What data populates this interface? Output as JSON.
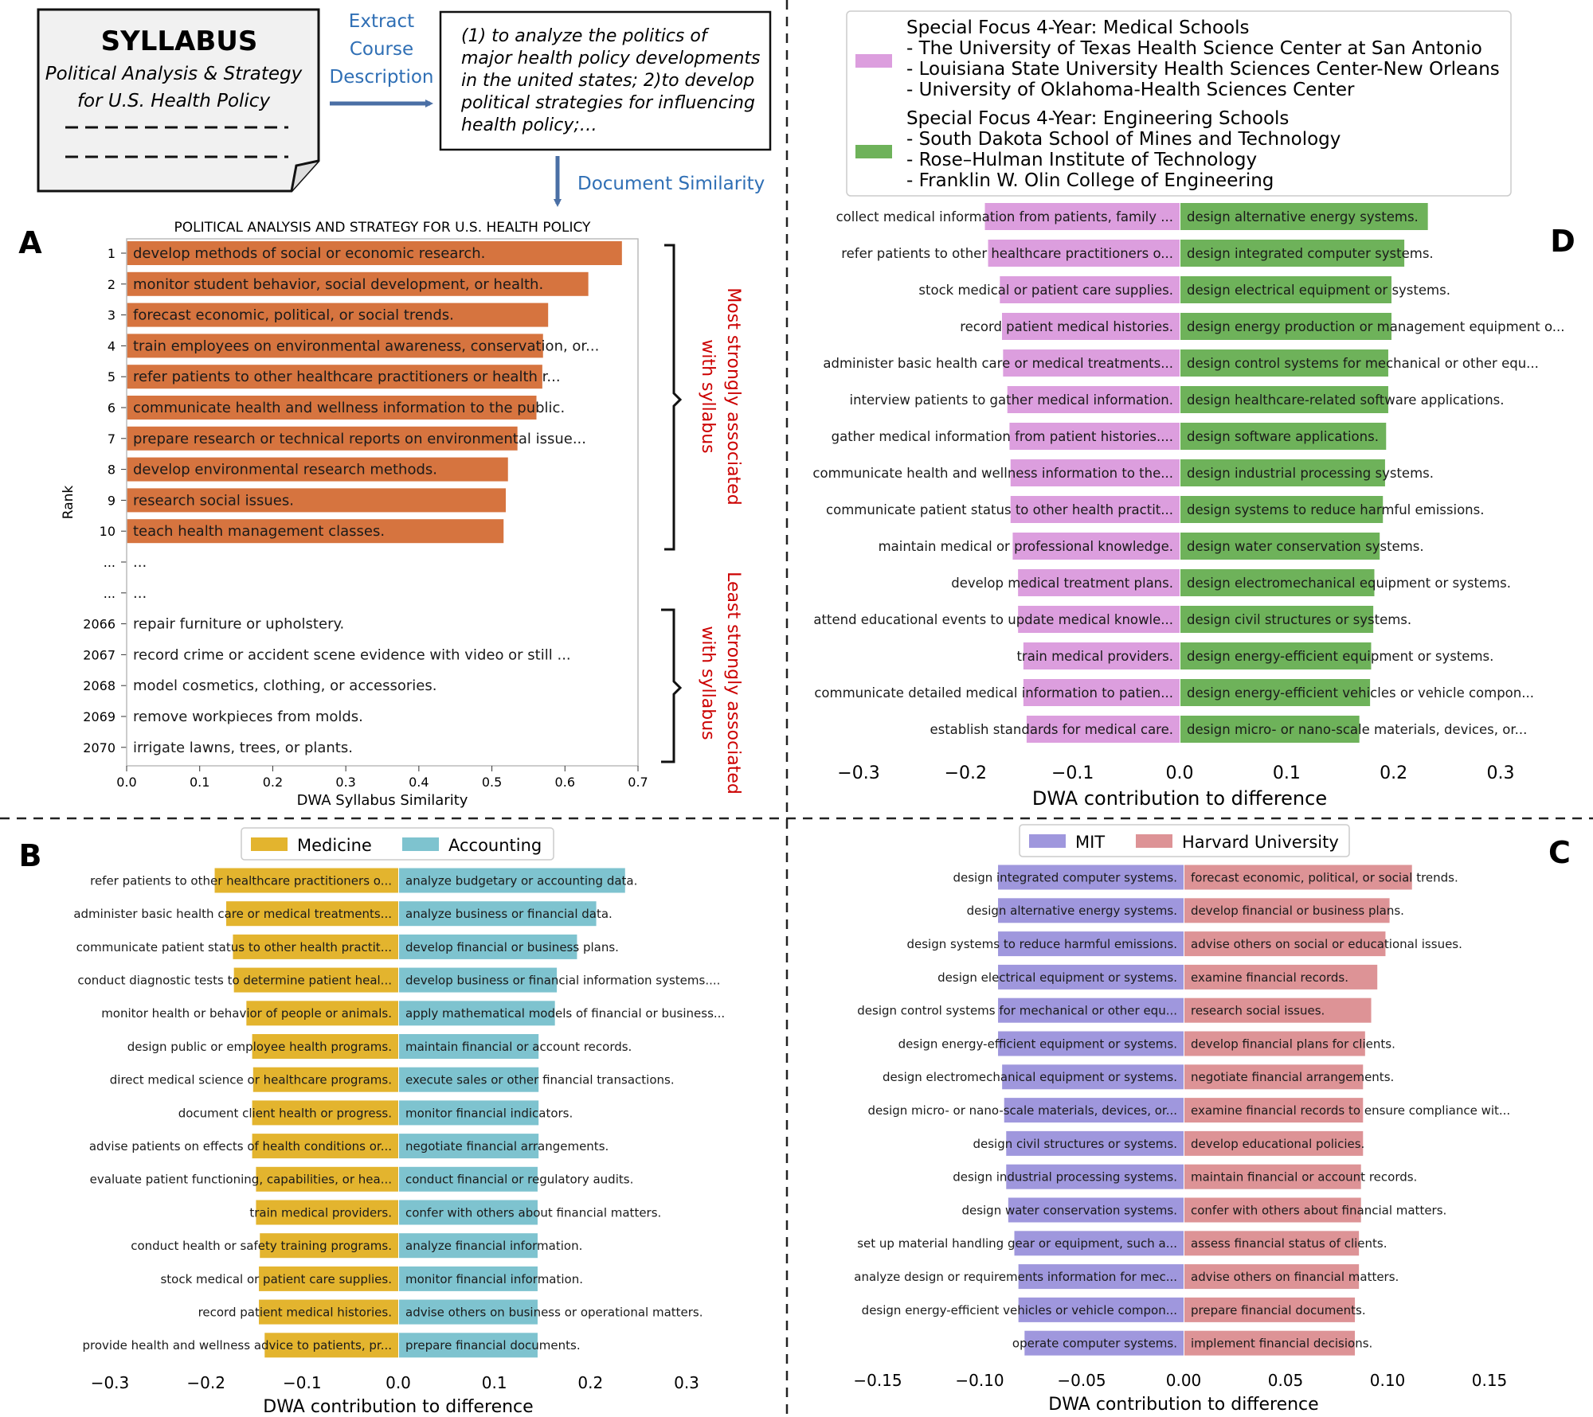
{
  "panel_letters": {
    "a": "A",
    "b": "B",
    "c": "C",
    "d": "D"
  },
  "syllabus_doc": {
    "title": "SYLLABUS",
    "subtitle_line1": "Political Analysis & Strategy",
    "subtitle_line2": "for U.S. Health Policy"
  },
  "flow": {
    "extract_line1": "Extract",
    "extract_line2": "Course",
    "extract_line3": "Description",
    "description_lines": [
      "(1) to analyze the politics of",
      "major health policy developments",
      "in the united states; 2)to develop",
      "political strategies for influencing",
      "health policy;…"
    ],
    "similarity_label": "Document Similarity"
  },
  "brackets": {
    "most_line1": "Most strongly associated",
    "most_line2": "with syllabus",
    "least_line1": "Least strongly associated",
    "least_line2": "with syllabus"
  },
  "colors": {
    "panel_a_bar": "#d6743f",
    "medicine": "#e3b42e",
    "accounting": "#7ec3cf",
    "mit": "#9f97dd",
    "harvard": "#dd9396",
    "medical_schools": "#dc9ede",
    "engineering_schools": "#6eb25a",
    "bracket_text": "#cc0000",
    "flow_text": "#2f6fb5",
    "arrow": "#4a6fa5"
  },
  "chart_data": [
    {
      "panel": "A",
      "type": "bar",
      "orientation": "horizontal",
      "title": "POLITICAL ANALYSIS AND STRATEGY FOR U.S. HEALTH POLICY",
      "xlabel": "DWA Syllabus Similarity",
      "ylabel": "Rank",
      "xlim": [
        0,
        0.7
      ],
      "xticks": [
        "0.0",
        "0.1",
        "0.2",
        "0.3",
        "0.4",
        "0.5",
        "0.6",
        "0.7"
      ],
      "rows": [
        {
          "rank": "1",
          "label": "develop methods of social or economic research.",
          "value": 0.678
        },
        {
          "rank": "2",
          "label": "monitor student behavior, social development, or health.",
          "value": 0.632
        },
        {
          "rank": "3",
          "label": "forecast economic, political, or social trends.",
          "value": 0.577
        },
        {
          "rank": "4",
          "label": "train employees on environmental awareness, conservation, or...",
          "value": 0.57
        },
        {
          "rank": "5",
          "label": "refer patients to other healthcare practitioners or health r...",
          "value": 0.569
        },
        {
          "rank": "6",
          "label": "communicate health and wellness information to the public.",
          "value": 0.561
        },
        {
          "rank": "7",
          "label": "prepare research or technical reports on environmental issue...",
          "value": 0.535
        },
        {
          "rank": "8",
          "label": "develop environmental research methods.",
          "value": 0.522
        },
        {
          "rank": "9",
          "label": "research social issues.",
          "value": 0.519
        },
        {
          "rank": "10",
          "label": "teach health management classes.",
          "value": 0.516
        },
        {
          "rank": "...",
          "label": "...",
          "value": 0
        },
        {
          "rank": "...",
          "label": "...",
          "value": 0
        },
        {
          "rank": "2066",
          "label": "repair furniture or upholstery.",
          "value": 0
        },
        {
          "rank": "2067",
          "label": "record crime or accident scene evidence with video or still ...",
          "value": 0
        },
        {
          "rank": "2068",
          "label": "model cosmetics, clothing, or accessories.",
          "value": 0
        },
        {
          "rank": "2069",
          "label": "remove workpieces from molds.",
          "value": 0
        },
        {
          "rank": "2070",
          "label": "irrigate lawns, trees, or plants.",
          "value": 0
        }
      ]
    },
    {
      "panel": "B",
      "type": "bar",
      "orientation": "horizontal-diverging",
      "xlabel": "DWA contribution to difference",
      "xlim": [
        -0.3,
        0.3
      ],
      "xticks": [
        "−0.3",
        "−0.2",
        "−0.1",
        "0.0",
        "0.1",
        "0.2",
        "0.3"
      ],
      "legend": [
        "Medicine",
        "Accounting"
      ],
      "left_series": {
        "name": "Medicine",
        "labels": [
          "refer patients to other healthcare practitioners o...",
          "administer basic health care or medical treatments...",
          "communicate patient status to other health practit...",
          "conduct diagnostic tests to determine patient heal...",
          "monitor health or behavior of people or animals.",
          "design public or employee health programs.",
          "direct medical science or healthcare programs.",
          "document client health or progress.",
          "advise patients on effects of health conditions or...",
          "evaluate patient functioning, capabilities, or hea...",
          "train medical providers.",
          "conduct health or safety training programs.",
          "stock medical or patient care supplies.",
          "record patient medical histories.",
          "provide health and wellness advice to patients, pr..."
        ],
        "values": [
          -0.191,
          -0.179,
          -0.172,
          -0.171,
          -0.158,
          -0.152,
          -0.151,
          -0.152,
          -0.152,
          -0.148,
          -0.148,
          -0.144,
          -0.145,
          -0.145,
          -0.139
        ]
      },
      "right_series": {
        "name": "Accounting",
        "labels": [
          "analyze budgetary or accounting data.",
          "analyze business or financial data.",
          "develop financial or business plans.",
          "develop business or financial information systems....",
          "apply mathematical models of financial or business...",
          "maintain financial or account records.",
          "execute sales or other financial transactions.",
          "monitor financial indicators.",
          "negotiate financial arrangements.",
          "conduct financial or regulatory audits.",
          "confer with others about financial matters.",
          "analyze financial information.",
          "monitor financial information.",
          "advise others on business or operational matters.",
          "prepare financial documents."
        ],
        "values": [
          0.236,
          0.206,
          0.186,
          0.165,
          0.163,
          0.146,
          0.146,
          0.146,
          0.146,
          0.145,
          0.145,
          0.145,
          0.145,
          0.145,
          0.145
        ]
      }
    },
    {
      "panel": "C",
      "type": "bar",
      "orientation": "horizontal-diverging",
      "xlabel": "DWA contribution to difference",
      "xlim": [
        -0.15,
        0.15
      ],
      "xticks": [
        "−0.15",
        "−0.10",
        "−0.05",
        "0.00",
        "0.05",
        "0.10",
        "0.15"
      ],
      "legend": [
        "MIT",
        "Harvard University"
      ],
      "left_series": {
        "name": "MIT",
        "labels": [
          "design integrated computer systems.",
          "design alternative energy systems.",
          "design systems to reduce harmful emissions.",
          "design electrical equipment or systems.",
          "design control systems for mechanical or other equ...",
          "design energy-efficient equipment or systems.",
          "design electromechanical equipment or systems.",
          "design micro- or nano-scale materials, devices, or...",
          "design civil structures or systems.",
          "design industrial processing systems.",
          "design water conservation systems.",
          "set up material handling gear or equipment, such a...",
          "analyze design or requirements information for mec...",
          "design energy-efficient vehicles or vehicle compon...",
          "operate computer systems."
        ],
        "values": [
          -0.091,
          -0.091,
          -0.091,
          -0.091,
          -0.091,
          -0.091,
          -0.089,
          -0.088,
          -0.087,
          -0.087,
          -0.086,
          -0.083,
          -0.081,
          -0.081,
          -0.078
        ]
      },
      "right_series": {
        "name": "Harvard University",
        "labels": [
          "forecast economic, political, or social trends.",
          "develop financial or business plans.",
          "advise others on social or educational issues.",
          "examine financial records.",
          "research social issues.",
          "develop financial plans for clients.",
          "negotiate financial arrangements.",
          "examine financial records to ensure compliance wit...",
          "develop educational policies.",
          "maintain financial or account records.",
          "confer with others about financial matters.",
          "assess financial status of clients.",
          "advise others on financial matters.",
          "prepare financial documents.",
          "implement financial decisions."
        ],
        "values": [
          0.112,
          0.101,
          0.099,
          0.095,
          0.092,
          0.089,
          0.088,
          0.088,
          0.088,
          0.087,
          0.087,
          0.086,
          0.086,
          0.084,
          0.084
        ]
      }
    },
    {
      "panel": "D",
      "type": "bar",
      "orientation": "horizontal-diverging",
      "xlabel": "DWA contribution to difference",
      "xlim": [
        -0.3,
        0.3
      ],
      "xticks": [
        "−0.3",
        "−0.2",
        "−0.1",
        "0.0",
        "0.1",
        "0.2",
        "0.3"
      ],
      "legend": [
        {
          "title": "Special Focus 4-Year: Medical Schools",
          "items": [
            "- The University of Texas Health Science Center at San Antonio",
            "- Louisiana State University Health Sciences Center-New Orleans",
            "- University of Oklahoma-Health Sciences Center"
          ]
        },
        {
          "title": "Special Focus 4-Year: Engineering Schools",
          "items": [
            "- South Dakota School of Mines and Technology",
            "- Rose–Hulman Institute of Technology",
            "- Franklin W. Olin College of Engineering"
          ]
        }
      ],
      "left_series": {
        "name": "Special Focus 4-Year: Medical Schools",
        "labels": [
          "collect medical information from patients, family ...",
          "refer patients to other healthcare practitioners o...",
          "stock medical or patient care supplies.",
          "record patient medical histories.",
          "administer basic health care or medical treatments...",
          "interview patients to gather medical information.",
          "gather medical information from patient histories....",
          "communicate health and wellness information to the...",
          "communicate patient status to other health practit...",
          "maintain medical or professional knowledge.",
          "develop medical treatment plans.",
          "attend educational events to update medical knowle...",
          "train medical providers.",
          "communicate detailed medical information to patien...",
          "establish standards for medical care."
        ],
        "values": [
          -0.182,
          -0.179,
          -0.168,
          -0.166,
          -0.165,
          -0.161,
          -0.159,
          -0.158,
          -0.158,
          -0.156,
          -0.151,
          -0.151,
          -0.146,
          -0.146,
          -0.143
        ]
      },
      "right_series": {
        "name": "Special Focus 4-Year: Engineering Schools",
        "labels": [
          "design alternative energy systems.",
          "design integrated computer systems.",
          "design electrical equipment or systems.",
          "design energy production or management equipment o...",
          "design control systems for mechanical or other equ...",
          "design healthcare-related software applications.",
          "design software applications.",
          "design industrial processing systems.",
          "design systems to reduce harmful emissions.",
          "design water conservation systems.",
          "design electromechanical equipment or systems.",
          "design civil structures or systems.",
          "design energy-efficient equipment or systems.",
          "design energy-efficient vehicles or vehicle compon...",
          "design micro- or nano-scale materials, devices, or..."
        ],
        "values": [
          0.232,
          0.21,
          0.198,
          0.198,
          0.195,
          0.195,
          0.193,
          0.192,
          0.19,
          0.187,
          0.182,
          0.181,
          0.179,
          0.178,
          0.168
        ]
      }
    }
  ]
}
